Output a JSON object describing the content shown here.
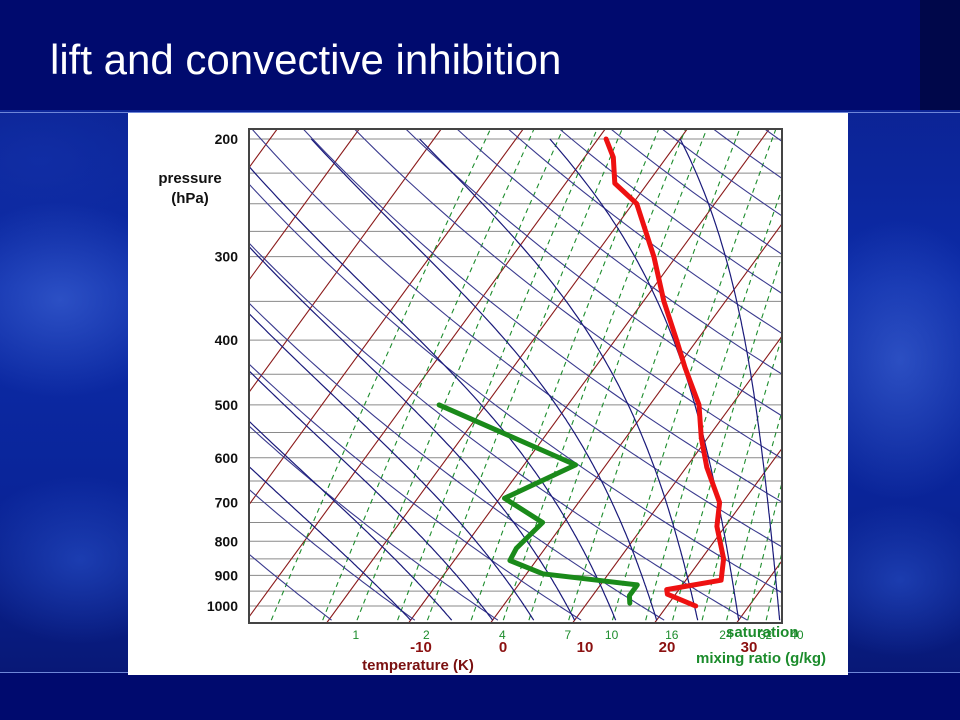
{
  "slide": {
    "title": "lift and convective inhibition"
  },
  "chart_data": {
    "type": "skew-t log-p",
    "ylabel": [
      "pressure",
      "(hPa)"
    ],
    "xlabel": "temperature (K)",
    "y_ticks": [
      "200",
      "300",
      "400",
      "500",
      "600",
      "700",
      "800",
      "900",
      "1000"
    ],
    "x_ticks": [
      "-10",
      "0",
      "10",
      "20",
      "30"
    ],
    "mixing_ratio_label": [
      "saturation",
      "mixing ratio (g/kg)"
    ],
    "mixing_ratio_ticks": [
      "1",
      "2",
      "4",
      "7",
      "10",
      "16",
      "24",
      "32",
      "40"
    ],
    "log_pressure_axis": true,
    "series": [
      {
        "color": "#ee1111",
        "points": [
          {
            "p": 1000,
            "t": 23.5
          },
          {
            "p": 960,
            "t": 19
          },
          {
            "p": 945,
            "t": 18.5
          },
          {
            "p": 915,
            "t": 24.3
          },
          {
            "p": 850,
            "t": 22.7
          },
          {
            "p": 760,
            "t": 19
          },
          {
            "p": 700,
            "t": 17.2
          },
          {
            "p": 620,
            "t": 12.5
          },
          {
            "p": 560,
            "t": 9.2
          },
          {
            "p": 500,
            "t": 6
          },
          {
            "p": 440,
            "t": 1
          },
          {
            "p": 400,
            "t": -2.5
          },
          {
            "p": 350,
            "t": -7.5
          },
          {
            "p": 300,
            "t": -12.7
          },
          {
            "p": 250,
            "t": -19.5
          },
          {
            "p": 233,
            "t": -24
          },
          {
            "p": 213,
            "t": -26.5
          },
          {
            "p": 200,
            "t": -29
          }
        ]
      },
      {
        "color": "#1a8a1a",
        "points": [
          {
            "p": 990,
            "t": 15.2
          },
          {
            "p": 965,
            "t": 14.5
          },
          {
            "p": 930,
            "t": 14.5
          },
          {
            "p": 895,
            "t": 2
          },
          {
            "p": 855,
            "t": -3.2
          },
          {
            "p": 820,
            "t": -3.5
          },
          {
            "p": 750,
            "t": -2.6
          },
          {
            "p": 690,
            "t": -9.4
          },
          {
            "p": 615,
            "t": -3.7
          },
          {
            "p": 500,
            "t": -25.7
          }
        ]
      }
    ],
    "colors": {
      "isotherm": "#8b1a1a",
      "dry_adiabat": "#3a3a8e",
      "moist_adiabat": "#1a1a7a",
      "mixing_ratio": "#1c8c2c",
      "isobar": "#8a8a8a"
    }
  }
}
